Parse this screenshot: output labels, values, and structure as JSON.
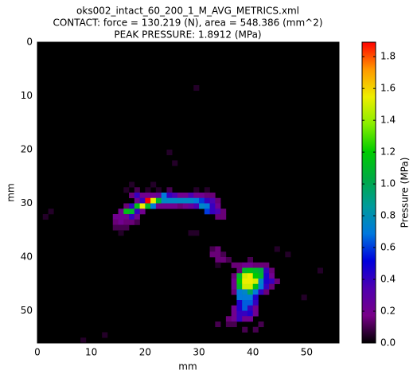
{
  "chart_data": {
    "type": "heatmap",
    "title": "oks002_intact_60_200_1_M_AVG_METRICS.xml",
    "subtitle": "CONTACT: force = 130.219 (N), area = 548.386 (mm^2)",
    "annotation": "PEAK PRESSURE: 1.8912 (MPa)",
    "xlabel": "mm",
    "ylabel": "mm",
    "colorbar_label": "Pressure (MPa)",
    "xlim": [
      0,
      56
    ],
    "ylim": [
      56,
      0
    ],
    "xticks": [
      0,
      10,
      20,
      30,
      40,
      50
    ],
    "yticks": [
      0,
      10,
      20,
      30,
      40,
      50
    ],
    "clim": [
      0,
      1.8912
    ],
    "cticks": [
      {
        "value": 0,
        "label": "0.0"
      },
      {
        "value": 0.2,
        "label": "0.2"
      },
      {
        "value": 0.4,
        "label": "0.4"
      },
      {
        "value": 0.6,
        "label": "0.6"
      },
      {
        "value": 0.8,
        "label": "0.8"
      },
      {
        "value": 1.0,
        "label": "1.0"
      },
      {
        "value": 1.2,
        "label": "1.2"
      },
      {
        "value": 1.4,
        "label": "1.4"
      },
      {
        "value": 1.6,
        "label": "1.6"
      },
      {
        "value": 1.8,
        "label": "1.8"
      }
    ],
    "colormap": [
      "#000000",
      "#780088",
      "#5000b0",
      "#0000dd",
      "#0078dd",
      "#009b9b",
      "#00aa44",
      "#00cc00",
      "#88ee00",
      "#eeee00",
      "#ff9900",
      "#ff0000"
    ],
    "cells": [
      [
        29,
        8,
        0.05
      ],
      [
        24,
        20,
        0.05
      ],
      [
        25,
        22,
        0.05
      ],
      [
        17,
        26,
        0.05
      ],
      [
        21,
        26,
        0.05
      ],
      [
        16,
        27,
        0.05
      ],
      [
        18,
        27,
        0.1
      ],
      [
        20,
        27,
        0.05
      ],
      [
        22,
        27,
        0.05
      ],
      [
        24,
        27,
        0.1
      ],
      [
        29,
        27,
        0.05
      ],
      [
        31,
        27,
        0.05
      ],
      [
        17,
        28,
        0.15
      ],
      [
        18,
        28,
        0.4
      ],
      [
        19,
        28,
        0.2
      ],
      [
        20,
        28,
        0.2
      ],
      [
        21,
        28,
        0.2
      ],
      [
        22,
        28,
        0.25
      ],
      [
        23,
        28,
        0.7
      ],
      [
        24,
        28,
        0.4
      ],
      [
        25,
        28,
        0.35
      ],
      [
        26,
        28,
        0.2
      ],
      [
        27,
        28,
        0.2
      ],
      [
        28,
        28,
        0.35
      ],
      [
        29,
        28,
        0.2
      ],
      [
        30,
        28,
        0.2
      ],
      [
        31,
        28,
        0.15
      ],
      [
        32,
        28,
        0.15
      ],
      [
        18,
        29,
        0.2
      ],
      [
        19,
        29,
        0.4
      ],
      [
        20,
        29,
        1.89
      ],
      [
        21,
        29,
        1.55
      ],
      [
        22,
        29,
        1.1
      ],
      [
        23,
        29,
        0.75
      ],
      [
        24,
        29,
        0.75
      ],
      [
        25,
        29,
        0.75
      ],
      [
        26,
        29,
        0.75
      ],
      [
        27,
        29,
        0.75
      ],
      [
        28,
        29,
        0.75
      ],
      [
        29,
        29,
        0.7
      ],
      [
        30,
        29,
        0.6
      ],
      [
        31,
        29,
        0.4
      ],
      [
        32,
        29,
        0.35
      ],
      [
        33,
        29,
        0.15
      ],
      [
        16,
        30,
        0.15
      ],
      [
        17,
        30,
        0.4
      ],
      [
        18,
        30,
        1.15
      ],
      [
        19,
        30,
        1.55
      ],
      [
        20,
        30,
        1.1
      ],
      [
        21,
        30,
        0.7
      ],
      [
        22,
        30,
        0.2
      ],
      [
        23,
        30,
        0.2
      ],
      [
        24,
        30,
        0.2
      ],
      [
        25,
        30,
        0.2
      ],
      [
        26,
        30,
        0.15
      ],
      [
        27,
        30,
        0.2
      ],
      [
        28,
        30,
        0.25
      ],
      [
        29,
        30,
        0.35
      ],
      [
        30,
        30,
        0.75
      ],
      [
        31,
        30,
        0.7
      ],
      [
        32,
        30,
        0.4
      ],
      [
        33,
        30,
        0.2
      ],
      [
        2,
        31,
        0.05
      ],
      [
        15,
        31,
        0.2
      ],
      [
        16,
        31,
        1.15
      ],
      [
        17,
        31,
        1.1
      ],
      [
        18,
        31,
        0.4
      ],
      [
        19,
        31,
        0.2
      ],
      [
        31,
        31,
        0.6
      ],
      [
        32,
        31,
        0.4
      ],
      [
        33,
        31,
        0.35
      ],
      [
        34,
        31,
        0.15
      ],
      [
        1,
        32,
        0.05
      ],
      [
        14,
        32,
        0.2
      ],
      [
        15,
        32,
        0.2
      ],
      [
        16,
        32,
        0.2
      ],
      [
        17,
        32,
        0.4
      ],
      [
        18,
        32,
        0.2
      ],
      [
        33,
        32,
        0.15
      ],
      [
        34,
        32,
        0.15
      ],
      [
        14,
        33,
        0.15
      ],
      [
        15,
        33,
        0.2
      ],
      [
        16,
        33,
        0.15
      ],
      [
        17,
        33,
        0.15
      ],
      [
        18,
        33,
        0.1
      ],
      [
        14,
        34,
        0.1
      ],
      [
        15,
        34,
        0.1
      ],
      [
        16,
        34,
        0.1
      ],
      [
        15,
        35,
        0.05
      ],
      [
        28,
        35,
        0.05
      ],
      [
        29,
        35,
        0.05
      ],
      [
        32,
        38,
        0.1
      ],
      [
        33,
        38,
        0.15
      ],
      [
        44,
        38,
        0.05
      ],
      [
        32,
        39,
        0.15
      ],
      [
        33,
        39,
        0.15
      ],
      [
        34,
        39,
        0.1
      ],
      [
        46,
        39,
        0.05
      ],
      [
        33,
        40,
        0.15
      ],
      [
        34,
        40,
        0.15
      ],
      [
        35,
        40,
        0.1
      ],
      [
        39,
        40,
        0.1
      ],
      [
        33,
        41,
        0.05
      ],
      [
        36,
        41,
        0.15
      ],
      [
        37,
        41,
        0.15
      ],
      [
        38,
        41,
        0.2
      ],
      [
        39,
        41,
        0.2
      ],
      [
        40,
        41,
        0.15
      ],
      [
        41,
        41,
        0.15
      ],
      [
        42,
        41,
        0.15
      ],
      [
        37,
        42,
        0.15
      ],
      [
        38,
        42,
        1.1
      ],
      [
        39,
        42,
        1.15
      ],
      [
        40,
        42,
        1.1
      ],
      [
        41,
        42,
        1.05
      ],
      [
        42,
        42,
        0.4
      ],
      [
        43,
        42,
        0.15
      ],
      [
        52,
        42,
        0.05
      ],
      [
        36,
        43,
        0.15
      ],
      [
        37,
        43,
        1.1
      ],
      [
        38,
        43,
        1.5
      ],
      [
        39,
        43,
        1.55
      ],
      [
        40,
        43,
        1.2
      ],
      [
        41,
        43,
        1.1
      ],
      [
        42,
        43,
        0.45
      ],
      [
        43,
        43,
        0.2
      ],
      [
        36,
        44,
        0.2
      ],
      [
        37,
        44,
        1.2
      ],
      [
        38,
        44,
        1.55
      ],
      [
        39,
        44,
        1.55
      ],
      [
        40,
        44,
        1.5
      ],
      [
        41,
        44,
        0.75
      ],
      [
        42,
        44,
        0.45
      ],
      [
        43,
        44,
        0.4
      ],
      [
        44,
        44,
        0.15
      ],
      [
        36,
        45,
        0.2
      ],
      [
        37,
        45,
        1.1
      ],
      [
        38,
        45,
        1.5
      ],
      [
        39,
        45,
        1.5
      ],
      [
        40,
        45,
        1.15
      ],
      [
        41,
        45,
        0.7
      ],
      [
        42,
        45,
        0.4
      ],
      [
        43,
        45,
        0.15
      ],
      [
        36,
        46,
        0.15
      ],
      [
        37,
        46,
        0.7
      ],
      [
        38,
        46,
        0.75
      ],
      [
        39,
        46,
        1.0
      ],
      [
        40,
        46,
        0.7
      ],
      [
        41,
        46,
        0.4
      ],
      [
        42,
        46,
        0.15
      ],
      [
        37,
        47,
        0.7
      ],
      [
        38,
        47,
        0.7
      ],
      [
        39,
        47,
        0.7
      ],
      [
        40,
        47,
        0.45
      ],
      [
        49,
        47,
        0.05
      ],
      [
        37,
        48,
        0.45
      ],
      [
        38,
        48,
        0.65
      ],
      [
        39,
        48,
        0.65
      ],
      [
        40,
        48,
        0.4
      ],
      [
        36,
        49,
        0.2
      ],
      [
        37,
        49,
        0.45
      ],
      [
        38,
        49,
        0.65
      ],
      [
        39,
        49,
        0.4
      ],
      [
        40,
        49,
        0.2
      ],
      [
        36,
        50,
        0.2
      ],
      [
        37,
        50,
        0.4
      ],
      [
        38,
        50,
        0.4
      ],
      [
        39,
        50,
        0.45
      ],
      [
        40,
        50,
        0.2
      ],
      [
        35,
        51,
        0.15
      ],
      [
        36,
        51,
        0.2
      ],
      [
        37,
        51,
        0.4
      ],
      [
        38,
        51,
        0.2
      ],
      [
        39,
        51,
        0.2
      ],
      [
        33,
        52,
        0.1
      ],
      [
        35,
        52,
        0.1
      ],
      [
        36,
        52,
        0.1
      ],
      [
        41,
        52,
        0.1
      ],
      [
        38,
        53,
        0.1
      ],
      [
        40,
        53,
        0.1
      ],
      [
        12,
        54,
        0.05
      ],
      [
        8,
        55,
        0.05
      ]
    ]
  }
}
